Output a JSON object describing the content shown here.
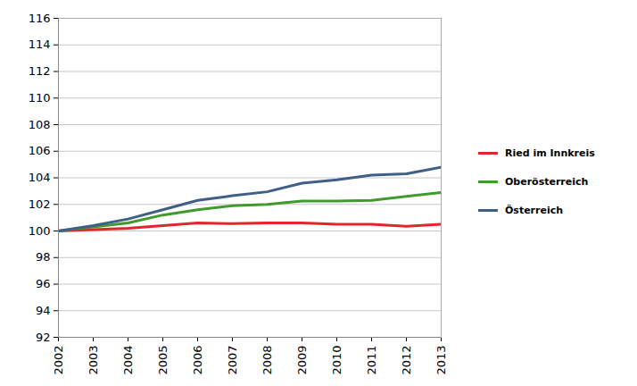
{
  "chart_data": {
    "type": "line",
    "x": [
      2002,
      2003,
      2004,
      2005,
      2006,
      2007,
      2008,
      2009,
      2010,
      2011,
      2012,
      2013
    ],
    "series": [
      {
        "name": "Ried im Innkreis",
        "color": "#e3262b",
        "values": [
          100,
          100.1,
          100.2,
          100.4,
          100.6,
          100.55,
          100.6,
          100.6,
          100.5,
          100.5,
          100.35,
          100.5
        ]
      },
      {
        "name": "Oberösterreich",
        "color": "#3f9b2c",
        "values": [
          100,
          100.3,
          100.6,
          101.2,
          101.6,
          101.9,
          102.0,
          102.25,
          102.25,
          102.3,
          102.6,
          102.9
        ]
      },
      {
        "name": "Österreich",
        "color": "#3f5f88",
        "values": [
          100,
          100.4,
          100.9,
          101.6,
          102.3,
          102.65,
          102.95,
          103.6,
          103.85,
          104.2,
          104.3,
          104.8
        ]
      }
    ],
    "xlim": [
      2002,
      2013
    ],
    "xticks": [
      2002,
      2003,
      2004,
      2005,
      2006,
      2007,
      2008,
      2009,
      2010,
      2011,
      2012,
      2013
    ],
    "ylim": [
      92,
      116
    ],
    "yticks": [
      92,
      94,
      96,
      98,
      100,
      102,
      104,
      106,
      108,
      110,
      112,
      114,
      116
    ],
    "grid": true,
    "legend": "right"
  }
}
